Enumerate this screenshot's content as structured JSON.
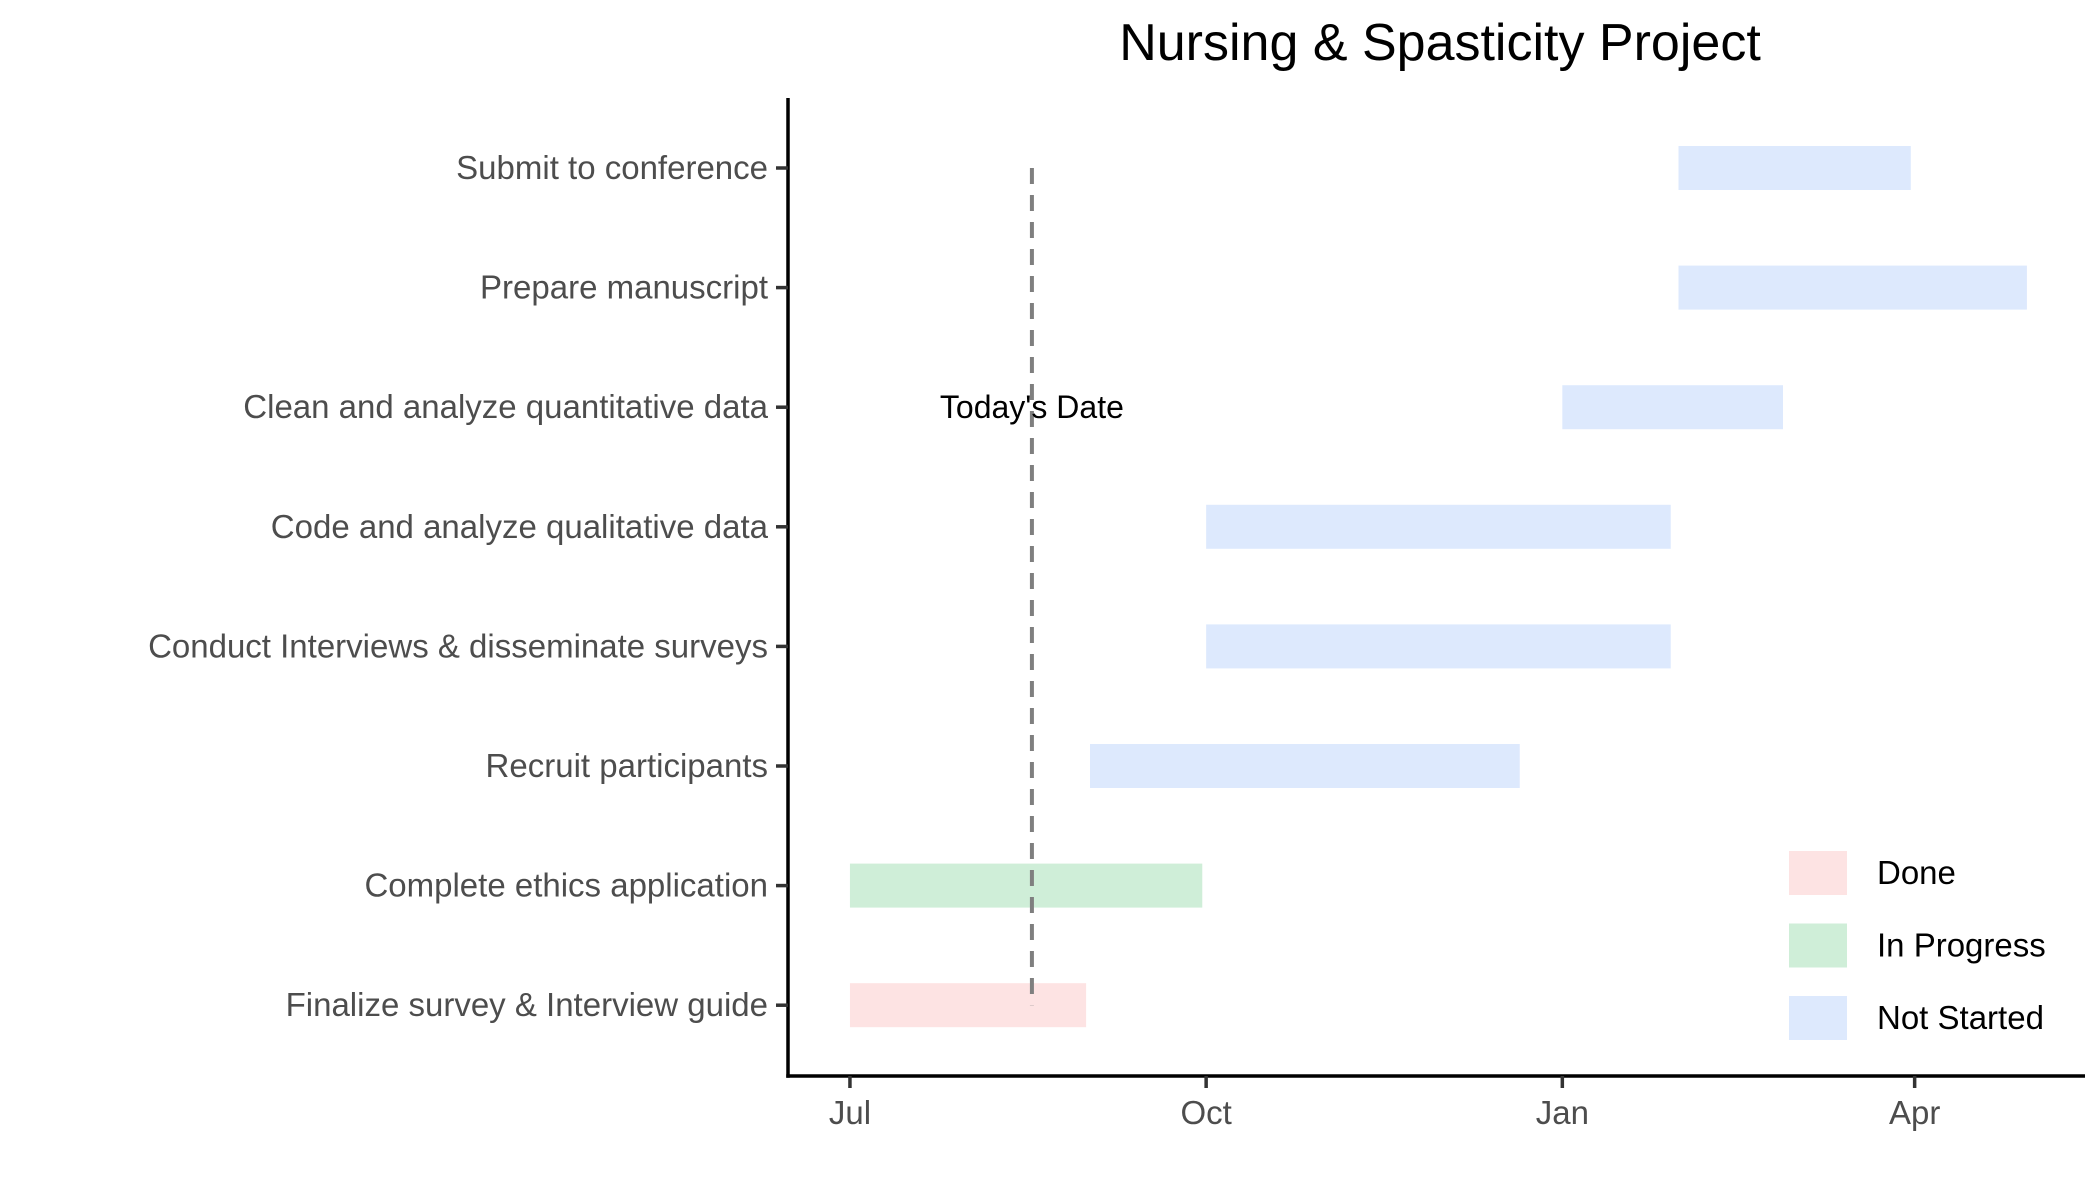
{
  "chart_data": {
    "type": "gantt",
    "title": "Nursing & Spasticity Project",
    "xlabel": "",
    "ylabel": "",
    "x_range": [
      "2023-06-15",
      "2024-05-15"
    ],
    "x_ticks": [
      {
        "date": "2023-07-01",
        "label": "Jul"
      },
      {
        "date": "2023-10-01",
        "label": "Oct"
      },
      {
        "date": "2024-01-01",
        "label": "Jan"
      },
      {
        "date": "2024-04-01",
        "label": "Apr"
      }
    ],
    "tasks": [
      {
        "name": "Finalize survey & Interview guide",
        "start": "2023-07-01",
        "end": "2023-08-31",
        "status": "Done"
      },
      {
        "name": "Complete ethics application",
        "start": "2023-07-01",
        "end": "2023-09-30",
        "status": "In Progress"
      },
      {
        "name": "Recruit participants",
        "start": "2023-09-01",
        "end": "2023-12-21",
        "status": "Not Started"
      },
      {
        "name": "Conduct Interviews & disseminate surveys",
        "start": "2023-10-01",
        "end": "2024-01-29",
        "status": "Not Started"
      },
      {
        "name": "Code and analyze qualitative data",
        "start": "2023-10-01",
        "end": "2024-01-29",
        "status": "Not Started"
      },
      {
        "name": "Clean and analyze quantitative data",
        "start": "2024-01-01",
        "end": "2024-02-27",
        "status": "Not Started"
      },
      {
        "name": "Prepare manuscript",
        "start": "2024-01-31",
        "end": "2024-04-30",
        "status": "Not Started"
      },
      {
        "name": "Submit to conference",
        "start": "2024-01-31",
        "end": "2024-03-31",
        "status": "Not Started"
      }
    ],
    "today": {
      "date": "2023-08-17",
      "label": "Today's Date"
    },
    "legend": {
      "position": "bottom-right",
      "entries": [
        {
          "label": "Done",
          "color": "#fde3e3"
        },
        {
          "label": "In Progress",
          "color": "#cfeed8"
        },
        {
          "label": "Not Started",
          "color": "#dde9fd"
        }
      ]
    },
    "grid": false
  }
}
